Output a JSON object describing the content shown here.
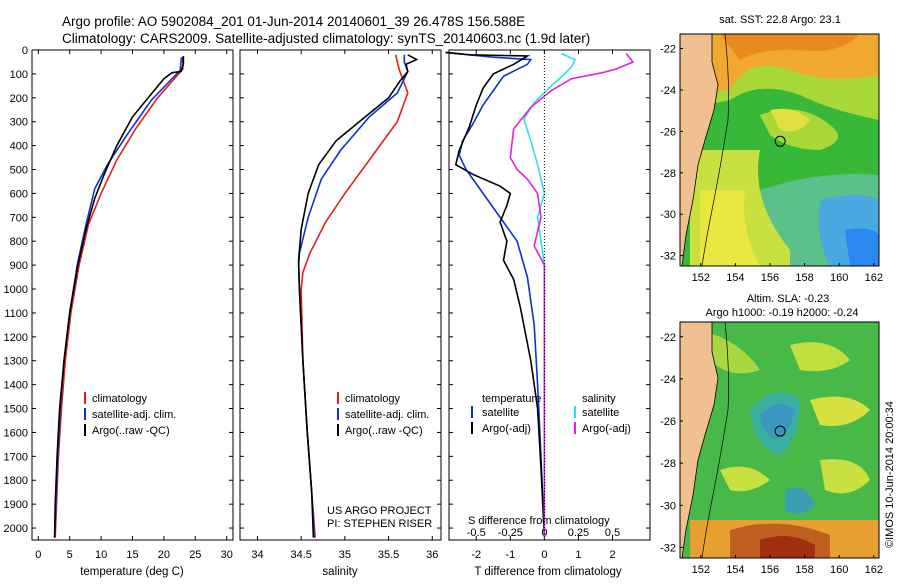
{
  "header": {
    "line1": "Argo profile: AO 5902084_201 01-Jun-2014 20140601_39 26.478S 156.588E",
    "line2": "Climatology: CARS2009. Satellite-adjusted climatology: synTS_20140603.nc (1.9d later)"
  },
  "colors": {
    "climatology": "#e02020",
    "satellite": "#1030d0",
    "argo": "#000000",
    "salinity_sat": "#30e0e8",
    "salinity_argo": "#e020e0"
  },
  "chart_data": [
    {
      "type": "line",
      "name": "temperature",
      "xlabel": "temperature (deg C)",
      "ylabel": "",
      "xlim": [
        -1,
        31
      ],
      "xticks": [
        "0",
        "5",
        "10",
        "15",
        "20",
        "25",
        "30"
      ],
      "xtick_values": [
        0,
        5,
        10,
        15,
        20,
        25,
        30
      ],
      "ylim": [
        0,
        2050
      ],
      "yticks": [
        "0",
        "100",
        "200",
        "300",
        "400",
        "500",
        "600",
        "700",
        "800",
        "900",
        "1000",
        "1100",
        "1200",
        "1300",
        "1400",
        "1500",
        "1600",
        "1700",
        "1800",
        "1900",
        "2000"
      ],
      "ytick_values": [
        0,
        100,
        200,
        300,
        400,
        500,
        600,
        700,
        800,
        900,
        1000,
        1100,
        1200,
        1300,
        1400,
        1500,
        1600,
        1700,
        1800,
        1900,
        2000
      ],
      "series": [
        {
          "name": "climatology",
          "color": "#e02020",
          "points": [
            [
              23,
              30
            ],
            [
              23,
              80
            ],
            [
              19,
              200
            ],
            [
              15.5,
              330
            ],
            [
              12.5,
              460
            ],
            [
              10,
              600
            ],
            [
              8,
              730
            ],
            [
              6.5,
              900
            ],
            [
              5.2,
              1100
            ],
            [
              4.3,
              1300
            ],
            [
              3.7,
              1500
            ],
            [
              3.2,
              1700
            ],
            [
              2.9,
              1900
            ],
            [
              2.7,
              2040
            ]
          ]
        },
        {
          "name": "satellite-adj. clim.",
          "color": "#1030d0",
          "points": [
            [
              22.8,
              30
            ],
            [
              22.6,
              85
            ],
            [
              18,
              210
            ],
            [
              14,
              360
            ],
            [
              11,
              480
            ],
            [
              9,
              580
            ],
            [
              7.6,
              730
            ],
            [
              6.2,
              900
            ],
            [
              5,
              1100
            ],
            [
              4.1,
              1300
            ],
            [
              3.5,
              1500
            ],
            [
              3.1,
              1700
            ],
            [
              2.8,
              1900
            ],
            [
              2.6,
              2040
            ]
          ]
        },
        {
          "name": "Argo(..raw -QC)",
          "color": "#000000",
          "points": [
            [
              23.1,
              25
            ],
            [
              23.1,
              60
            ],
            [
              22.7,
              90
            ],
            [
              21.3,
              95
            ],
            [
              20,
              120
            ],
            [
              17.5,
              200
            ],
            [
              15,
              280
            ],
            [
              12.5,
              400
            ],
            [
              10.5,
              520
            ],
            [
              9,
              620
            ],
            [
              7.6,
              750
            ],
            [
              6.3,
              900
            ],
            [
              5,
              1100
            ],
            [
              4.1,
              1300
            ],
            [
              3.4,
              1500
            ],
            [
              3,
              1700
            ],
            [
              2.7,
              1900
            ],
            [
              2.6,
              2040
            ]
          ]
        }
      ],
      "legend": [
        "climatology",
        "satellite-adj. clim.",
        "Argo(..raw -QC)"
      ]
    },
    {
      "type": "line",
      "name": "salinity",
      "xlabel": "salinity",
      "xlim": [
        33.8,
        36.1
      ],
      "xticks": [
        "34",
        "34.5",
        "35",
        "35.5",
        "36"
      ],
      "xtick_values": [
        34,
        34.5,
        35,
        35.5,
        36
      ],
      "ylim": [
        0,
        2050
      ],
      "series": [
        {
          "name": "climatology",
          "color": "#e02020",
          "points": [
            [
              35.58,
              20
            ],
            [
              35.62,
              80
            ],
            [
              35.72,
              180
            ],
            [
              35.6,
              300
            ],
            [
              35.3,
              450
            ],
            [
              35,
              600
            ],
            [
              34.78,
              720
            ],
            [
              34.6,
              850
            ],
            [
              34.52,
              930
            ],
            [
              34.5,
              1000
            ],
            [
              34.52,
              1300
            ],
            [
              34.57,
              1600
            ],
            [
              34.62,
              1850
            ],
            [
              34.66,
              2040
            ]
          ]
        },
        {
          "name": "satellite-adj. clim.",
          "color": "#1030d0",
          "points": [
            [
              35.68,
              20
            ],
            [
              35.68,
              50
            ],
            [
              35.72,
              90
            ],
            [
              35.6,
              180
            ],
            [
              35.28,
              280
            ],
            [
              34.95,
              420
            ],
            [
              34.73,
              540
            ],
            [
              34.58,
              700
            ],
            [
              34.48,
              850
            ],
            [
              34.47,
              900
            ],
            [
              34.48,
              1000
            ],
            [
              34.52,
              1300
            ],
            [
              34.57,
              1600
            ],
            [
              34.62,
              1850
            ],
            [
              34.65,
              2040
            ]
          ]
        },
        {
          "name": "Argo(..raw -QC)",
          "color": "#000000",
          "points": [
            [
              35.72,
              20
            ],
            [
              35.82,
              40
            ],
            [
              35.7,
              60
            ],
            [
              35.72,
              90
            ],
            [
              35.63,
              130
            ],
            [
              35.5,
              200
            ],
            [
              35.2,
              290
            ],
            [
              34.9,
              380
            ],
            [
              34.7,
              480
            ],
            [
              34.58,
              600
            ],
            [
              34.5,
              750
            ],
            [
              34.47,
              880
            ],
            [
              34.48,
              1000
            ],
            [
              34.52,
              1300
            ],
            [
              34.57,
              1600
            ],
            [
              34.62,
              1850
            ],
            [
              34.64,
              2040
            ]
          ]
        }
      ],
      "legend": [
        "climatology",
        "satellite-adj. clim.",
        "Argo(..raw -QC)"
      ],
      "annotation": [
        "US ARGO PROJECT",
        "PI: STEPHEN RISER"
      ]
    },
    {
      "type": "line",
      "name": "difference",
      "xlabel": "T difference from climatology",
      "xlabel_top": "S difference from climatology",
      "xlim": [
        -2.8,
        3.1
      ],
      "xticks": [
        "-2",
        "-1",
        "0",
        "1",
        "2"
      ],
      "xtick_values": [
        -2,
        -1,
        0,
        1,
        2
      ],
      "s_ticks": [
        "-0.5",
        "-0.25",
        "0",
        "0.25",
        "0.5"
      ],
      "s_tick_values": [
        -2,
        -1,
        0,
        1,
        2
      ],
      "ylim": [
        0,
        2050
      ],
      "series": [
        {
          "name": "temperature satellite",
          "color": "#1030d0",
          "points": [
            [
              -2.9,
              10
            ],
            [
              -1.5,
              30
            ],
            [
              -0.4,
              40
            ],
            [
              -0.5,
              60
            ],
            [
              -1.2,
              110
            ],
            [
              -1.5,
              170
            ],
            [
              -1.8,
              230
            ],
            [
              -2.1,
              310
            ],
            [
              -2.4,
              380
            ],
            [
              -2.5,
              440
            ],
            [
              -2.3,
              500
            ],
            [
              -2,
              560
            ],
            [
              -1.6,
              640
            ],
            [
              -1.2,
              720
            ],
            [
              -0.8,
              800
            ],
            [
              -0.5,
              950
            ],
            [
              -0.3,
              1150
            ],
            [
              -0.2,
              1400
            ],
            [
              -0.1,
              1700
            ],
            [
              0,
              2040
            ]
          ]
        },
        {
          "name": "temperature Argo(-adj)",
          "color": "#000000",
          "points": [
            [
              -2.9,
              10
            ],
            [
              -2.2,
              20
            ],
            [
              -0.5,
              25
            ],
            [
              -0.9,
              60
            ],
            [
              -1.5,
              100
            ],
            [
              -1.8,
              160
            ],
            [
              -2,
              230
            ],
            [
              -2.2,
              320
            ],
            [
              -2.5,
              420
            ],
            [
              -2.6,
              480
            ],
            [
              -2.1,
              520
            ],
            [
              -1.3,
              570
            ],
            [
              -1,
              600
            ],
            [
              -1.1,
              650
            ],
            [
              -1.3,
              720
            ],
            [
              -1.1,
              800
            ],
            [
              -1.2,
              880
            ],
            [
              -0.9,
              960
            ],
            [
              -0.7,
              1080
            ],
            [
              -0.4,
              1300
            ],
            [
              -0.2,
              1500
            ],
            [
              -0.1,
              1750
            ],
            [
              0,
              2040
            ]
          ]
        },
        {
          "name": "salinity satellite",
          "color": "#30e0e8",
          "points": [
            [
              0.5,
              15
            ],
            [
              0.9,
              40
            ],
            [
              0.8,
              70
            ],
            [
              0.6,
              100
            ],
            [
              0.2,
              150
            ],
            [
              -0.3,
              220
            ],
            [
              -0.6,
              290
            ],
            [
              -0.4,
              380
            ],
            [
              -0.2,
              480
            ],
            [
              0,
              600
            ],
            [
              -0.2,
              700
            ],
            [
              0,
              900
            ],
            [
              0,
              1100
            ],
            [
              0,
              2040
            ]
          ]
        },
        {
          "name": "salinity Argo(-adj)",
          "color": "#e020e0",
          "points": [
            [
              2.4,
              15
            ],
            [
              2.6,
              50
            ],
            [
              2.1,
              80
            ],
            [
              1.7,
              95
            ],
            [
              0.8,
              120
            ],
            [
              0.2,
              170
            ],
            [
              -0.4,
              240
            ],
            [
              -0.9,
              330
            ],
            [
              -1,
              450
            ],
            [
              -0.8,
              500
            ],
            [
              -0.5,
              540
            ],
            [
              -0.2,
              600
            ],
            [
              -0.1,
              700
            ],
            [
              -0.3,
              820
            ],
            [
              0,
              900
            ],
            [
              0,
              1100
            ],
            [
              0,
              2040
            ]
          ]
        }
      ],
      "legend_titles": [
        "temperature",
        "salinity"
      ],
      "legend": [
        "satellite",
        "Argo(-adj)",
        "satellite",
        "Argo(-adj)"
      ]
    },
    {
      "type": "heatmap",
      "name": "SST map",
      "title": "sat. SST: 22.8 Argo: 23.1",
      "xticks": [
        "152",
        "154",
        "156",
        "158",
        "160",
        "162"
      ],
      "xtick_values": [
        152,
        154,
        156,
        158,
        160,
        162
      ],
      "yticks": [
        "-22",
        "-24",
        "-26",
        "-28",
        "-30",
        "-32"
      ],
      "ytick_values": [
        -22,
        -24,
        -26,
        -28,
        -30,
        -32
      ],
      "xlim": [
        150.8,
        162.3
      ],
      "ylim": [
        -32.5,
        -21.3
      ],
      "marker": [
        156.588,
        -26.478
      ]
    },
    {
      "type": "heatmap",
      "name": "SLA map",
      "title": "Altim. SLA: -0.23",
      "subtitle": "Argo h1000: -0.19 h2000: -0.24",
      "xticks": [
        "152",
        "154",
        "156",
        "158",
        "160",
        "162"
      ],
      "xtick_values": [
        152,
        154,
        156,
        158,
        160,
        162
      ],
      "yticks": [
        "-22",
        "-24",
        "-26",
        "-28",
        "-30",
        "-32"
      ],
      "ytick_values": [
        -22,
        -24,
        -26,
        -28,
        -30,
        -32
      ],
      "xlim": [
        150.8,
        162.3
      ],
      "ylim": [
        -32.5,
        -21.3
      ],
      "marker": [
        156.588,
        -26.478
      ]
    }
  ],
  "credit": "©IMOS 10-Jun-2014 20:00:34"
}
